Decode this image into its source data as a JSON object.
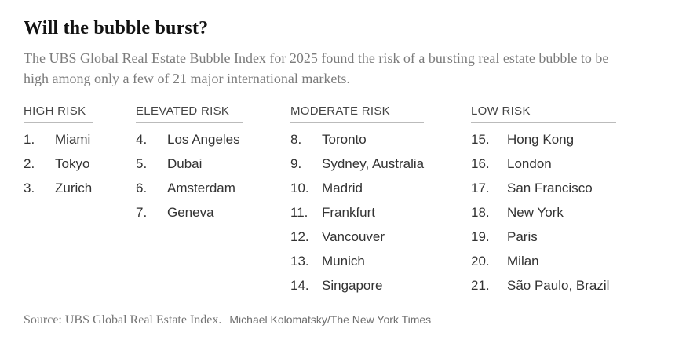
{
  "chart_data": {
    "type": "table",
    "title": "Will the bubble burst?",
    "subtitle": "The UBS Global Real Estate Bubble Index for 2025 found the risk of a bursting real estate bubble to be high among only a few of 21 major international markets.",
    "columns": [
      "HIGH RISK",
      "ELEVATED RISK",
      "MODERATE RISK",
      "LOW RISK"
    ],
    "groups": [
      {
        "label": "HIGH RISK",
        "items": [
          {
            "rank": 1,
            "rank_label": "1.",
            "market": "Miami"
          },
          {
            "rank": 2,
            "rank_label": "2.",
            "market": "Tokyo"
          },
          {
            "rank": 3,
            "rank_label": "3.",
            "market": "Zurich"
          }
        ]
      },
      {
        "label": "ELEVATED RISK",
        "items": [
          {
            "rank": 4,
            "rank_label": "4.",
            "market": "Los Angeles"
          },
          {
            "rank": 5,
            "rank_label": "5.",
            "market": "Dubai"
          },
          {
            "rank": 6,
            "rank_label": "6.",
            "market": "Amsterdam"
          },
          {
            "rank": 7,
            "rank_label": "7.",
            "market": "Geneva"
          }
        ]
      },
      {
        "label": "MODERATE RISK",
        "items": [
          {
            "rank": 8,
            "rank_label": "8.",
            "market": "Toronto"
          },
          {
            "rank": 9,
            "rank_label": "9.",
            "market": "Sydney, Australia"
          },
          {
            "rank": 10,
            "rank_label": "10.",
            "market": "Madrid"
          },
          {
            "rank": 11,
            "rank_label": "11.",
            "market": "Frankfurt"
          },
          {
            "rank": 12,
            "rank_label": "12.",
            "market": "Vancouver"
          },
          {
            "rank": 13,
            "rank_label": "13.",
            "market": "Munich"
          },
          {
            "rank": 14,
            "rank_label": "14.",
            "market": "Singapore"
          }
        ]
      },
      {
        "label": "LOW RISK",
        "items": [
          {
            "rank": 15,
            "rank_label": "15.",
            "market": "Hong Kong"
          },
          {
            "rank": 16,
            "rank_label": "16.",
            "market": "London"
          },
          {
            "rank": 17,
            "rank_label": "17.",
            "market": "San Francisco"
          },
          {
            "rank": 18,
            "rank_label": "18.",
            "market": "New York"
          },
          {
            "rank": 19,
            "rank_label": "19.",
            "market": "Paris"
          },
          {
            "rank": 20,
            "rank_label": "20.",
            "market": "Milan"
          },
          {
            "rank": 21,
            "rank_label": "21.",
            "market": "São Paulo, Brazil"
          }
        ]
      }
    ],
    "legend_position": "none",
    "grid": false
  },
  "footer": {
    "source": "Source: UBS Global Real Estate Index.",
    "credit": "Michael Kolomatsky/The New York Times"
  },
  "colors": {
    "background": "#ffffff",
    "title_text": "#121212",
    "subtitle_text": "#7b7b7b",
    "header_text": "#444444",
    "header_rule": "#bbbbbb",
    "list_text": "#333333",
    "source_text": "#757575"
  }
}
